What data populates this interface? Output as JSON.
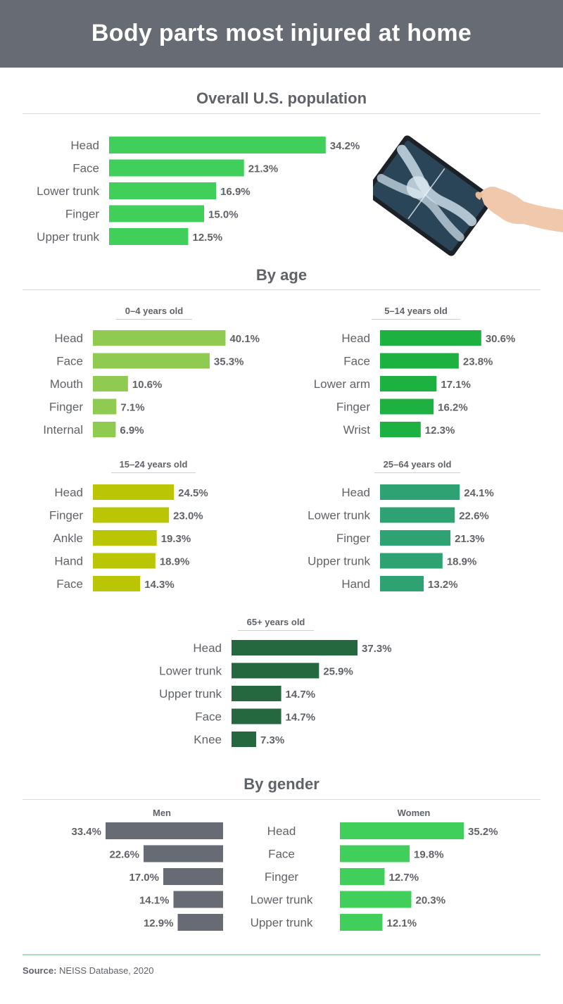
{
  "title": "Body parts most injured at home",
  "sections": {
    "overall": "Overall U.S. population",
    "age": "By age",
    "gender": "By gender"
  },
  "gender_labels": {
    "men": "Men",
    "women": "Women"
  },
  "source": {
    "label": "Source:",
    "text": " NEISS Database, 2020"
  },
  "colors": {
    "overall": "#3fcf5a",
    "age_0_4": "#8fcb51",
    "age_5_14": "#1db142",
    "age_15_24": "#bac503",
    "age_25_64": "#2ea273",
    "age_65": "#256840",
    "men": "#666b74",
    "women": "#3fcf5a"
  },
  "chart_data": [
    {
      "type": "bar",
      "title": "Overall U.S. population",
      "categories": [
        "Head",
        "Face",
        "Lower trunk",
        "Finger",
        "Upper trunk"
      ],
      "values": [
        34.2,
        21.3,
        16.9,
        15.0,
        12.5
      ],
      "value_labels": [
        "34.2%",
        "21.3%",
        "16.9%",
        "15.0%",
        "12.5%"
      ]
    },
    {
      "type": "bar",
      "title": "0–4 years old",
      "categories": [
        "Head",
        "Face",
        "Mouth",
        "Finger",
        "Internal"
      ],
      "values": [
        40.1,
        35.3,
        10.6,
        7.1,
        6.9
      ],
      "value_labels": [
        "40.1%",
        "35.3%",
        "10.6%",
        "7.1%",
        "6.9%"
      ]
    },
    {
      "type": "bar",
      "title": "5–14 years old",
      "categories": [
        "Head",
        "Face",
        "Lower arm",
        "Finger",
        "Wrist"
      ],
      "values": [
        30.6,
        23.8,
        17.1,
        16.2,
        12.3
      ],
      "value_labels": [
        "30.6%",
        "23.8%",
        "17.1%",
        "16.2%",
        "12.3%"
      ]
    },
    {
      "type": "bar",
      "title": "15–24 years old",
      "categories": [
        "Head",
        "Finger",
        "Ankle",
        "Hand",
        "Face"
      ],
      "values": [
        24.5,
        23.0,
        19.3,
        18.9,
        14.3
      ],
      "value_labels": [
        "24.5%",
        "23.0%",
        "19.3%",
        "18.9%",
        "14.3%"
      ]
    },
    {
      "type": "bar",
      "title": "25–64 years old",
      "categories": [
        "Head",
        "Lower trunk",
        "Finger",
        "Upper trunk",
        "Hand"
      ],
      "values": [
        24.1,
        22.6,
        21.3,
        18.9,
        13.2
      ],
      "value_labels": [
        "24.1%",
        "22.6%",
        "21.3%",
        "18.9%",
        "13.2%"
      ]
    },
    {
      "type": "bar",
      "title": "65+ years old",
      "categories": [
        "Head",
        "Lower trunk",
        "Upper trunk",
        "Face",
        "Knee"
      ],
      "values": [
        37.3,
        25.9,
        14.7,
        14.7,
        7.3
      ],
      "value_labels": [
        "37.3%",
        "25.9%",
        "14.7%",
        "14.7%",
        "7.3%"
      ]
    },
    {
      "type": "bar",
      "title": "By gender",
      "categories": [
        "Head",
        "Face",
        "Finger",
        "Lower trunk",
        "Upper trunk"
      ],
      "series": [
        {
          "name": "Men",
          "values": [
            33.4,
            22.6,
            17.0,
            14.1,
            12.9
          ],
          "value_labels": [
            "33.4%",
            "22.6%",
            "17.0%",
            "14.1%",
            "12.9%"
          ]
        },
        {
          "name": "Women",
          "values": [
            35.2,
            19.8,
            12.7,
            20.3,
            12.1
          ],
          "value_labels": [
            "35.2%",
            "19.8%",
            "12.7%",
            "20.3%",
            "12.1%"
          ]
        }
      ]
    }
  ]
}
